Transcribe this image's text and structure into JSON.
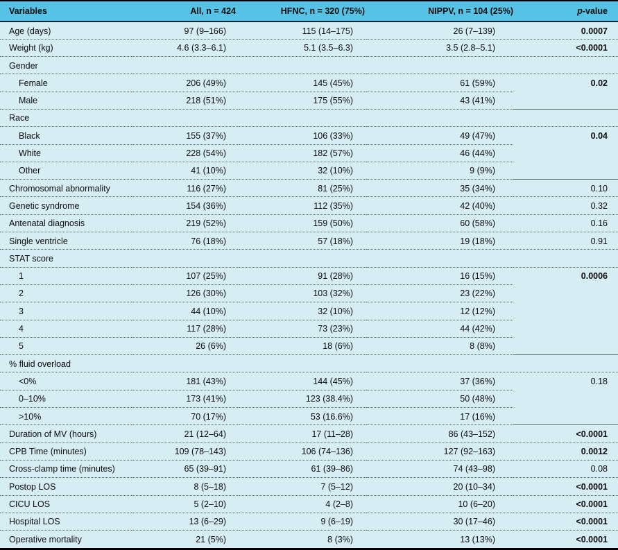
{
  "colors": {
    "header_bg": "#56C3E6",
    "body_bg": "#D7EDF4",
    "frame": "#000000",
    "header_sep": "#102830",
    "dot": "#4E6268",
    "dot_solid": "#5A6B70",
    "text": "#0B0B0B"
  },
  "table": {
    "columns": [
      {
        "label": "Variables"
      },
      {
        "label": "All, n = 424"
      },
      {
        "label": "HFNC, n = 320 (75%)"
      },
      {
        "label": "NIPPV, n = 104 (25%)"
      },
      {
        "label_italic": "p",
        "label_rest": "-value"
      }
    ],
    "rows": [
      {
        "kind": "data",
        "label": "Age (days)",
        "values": [
          "97 (9–166)",
          "115 (14–175)",
          "26 (7–139)"
        ],
        "p": "0.0007",
        "bold_p": true
      },
      {
        "kind": "data",
        "label": "Weight (kg)",
        "values": [
          "4.6 (3.3–6.1)",
          "5.1 (3.5–6.3)",
          "3.5 (2.8–5.1)"
        ],
        "p": "<0.0001",
        "bold_p": true
      },
      {
        "kind": "section",
        "label": "Gender"
      },
      {
        "kind": "sub",
        "label": "Female",
        "values": [
          "206 (49%)",
          "145 (45%)",
          "61 (59%)"
        ],
        "p": "0.02",
        "bold_p": true,
        "p_rowspan": 2
      },
      {
        "kind": "sub",
        "label": "Male",
        "values": [
          "218 (51%)",
          "175 (55%)",
          "43 (41%)"
        ],
        "p_skip": true
      },
      {
        "kind": "section",
        "label": "Race"
      },
      {
        "kind": "sub",
        "label": "Black",
        "values": [
          "155 (37%)",
          "106 (33%)",
          "49 (47%)"
        ],
        "p": "0.04",
        "bold_p": true,
        "p_rowspan": 3
      },
      {
        "kind": "sub",
        "label": "White",
        "values": [
          "228 (54%)",
          "182 (57%)",
          "46 (44%)"
        ],
        "p_skip": true
      },
      {
        "kind": "sub",
        "label": "Other",
        "values": [
          "41 (10%)",
          "32 (10%)",
          "9 (9%)"
        ],
        "p_skip": true
      },
      {
        "kind": "data",
        "label": "Chromosomal abnormality",
        "values": [
          "116 (27%)",
          "81 (25%)",
          "35 (34%)"
        ],
        "p": "0.10",
        "bold_p": false
      },
      {
        "kind": "data",
        "label": "Genetic syndrome",
        "values": [
          "154 (36%)",
          "112 (35%)",
          "42 (40%)"
        ],
        "p": "0.32",
        "bold_p": false
      },
      {
        "kind": "data",
        "label": "Antenatal diagnosis",
        "values": [
          "219 (52%)",
          "159 (50%)",
          "60 (58%)"
        ],
        "p": "0.16",
        "bold_p": false
      },
      {
        "kind": "data",
        "label": "Single ventricle",
        "values": [
          "76 (18%)",
          "57 (18%)",
          "19 (18%)"
        ],
        "p": "0.91",
        "bold_p": false
      },
      {
        "kind": "section",
        "label": "STAT score"
      },
      {
        "kind": "sub",
        "label": "1",
        "values": [
          "107 (25%)",
          "91 (28%)",
          "16 (15%)"
        ],
        "p": "0.0006",
        "bold_p": true,
        "p_rowspan": 5
      },
      {
        "kind": "sub",
        "label": "2",
        "values": [
          "126 (30%)",
          "103 (32%)",
          "23 (22%)"
        ],
        "p_skip": true
      },
      {
        "kind": "sub",
        "label": "3",
        "values": [
          "44 (10%)",
          "32 (10%)",
          "12 (12%)"
        ],
        "p_skip": true
      },
      {
        "kind": "sub",
        "label": "4",
        "values": [
          "117 (28%)",
          "73 (23%)",
          "44 (42%)"
        ],
        "p_skip": true
      },
      {
        "kind": "sub",
        "label": "5",
        "values": [
          "26 (6%)",
          "18 (6%)",
          "8 (8%)"
        ],
        "p_skip": true
      },
      {
        "kind": "section",
        "label": "% fluid overload"
      },
      {
        "kind": "sub",
        "label": "<0%",
        "values": [
          "181 (43%)",
          "144 (45%)",
          "37 (36%)"
        ],
        "p": "0.18",
        "bold_p": false,
        "p_rowspan": 3
      },
      {
        "kind": "sub",
        "label": "0–10%",
        "values": [
          "173 (41%)",
          "123 (38.4%)",
          "50 (48%)"
        ],
        "p_skip": true
      },
      {
        "kind": "sub",
        "label": ">10%",
        "values": [
          "70 (17%)",
          "53 (16.6%)",
          "17 (16%)"
        ],
        "p_skip": true
      },
      {
        "kind": "data",
        "label": "Duration of MV (hours)",
        "values": [
          "21 (12–64)",
          "17 (11–28)",
          "86 (43–152)"
        ],
        "p": "<0.0001",
        "bold_p": true
      },
      {
        "kind": "data",
        "label": "CPB Time (minutes)",
        "values": [
          "109 (78–143)",
          "106 (74–136)",
          "127 (92–163)"
        ],
        "p": "0.0012",
        "bold_p": true
      },
      {
        "kind": "data",
        "label": "Cross-clamp time (minutes)",
        "values": [
          "65 (39–91)",
          "61 (39–86)",
          "74 (43–98)"
        ],
        "p": "0.08",
        "bold_p": false
      },
      {
        "kind": "data",
        "label": "Postop LOS",
        "values": [
          "8 (5–18)",
          "7 (5–12)",
          "20 (10–34)"
        ],
        "p": "<0.0001",
        "bold_p": true
      },
      {
        "kind": "data",
        "label": "CICU LOS",
        "values": [
          "5 (2–10)",
          "4 (2–8)",
          "10 (6–20)"
        ],
        "p": "<0.0001",
        "bold_p": true
      },
      {
        "kind": "data",
        "label": "Hospital LOS",
        "values": [
          "13 (6–29)",
          "9 (6–19)",
          "30 (17–46)"
        ],
        "p": "<0.0001",
        "bold_p": true
      },
      {
        "kind": "data",
        "label": "Operative mortality",
        "values": [
          "21 (5%)",
          "8 (3%)",
          "13 (13%)"
        ],
        "p": "<0.0001",
        "bold_p": true
      }
    ]
  }
}
